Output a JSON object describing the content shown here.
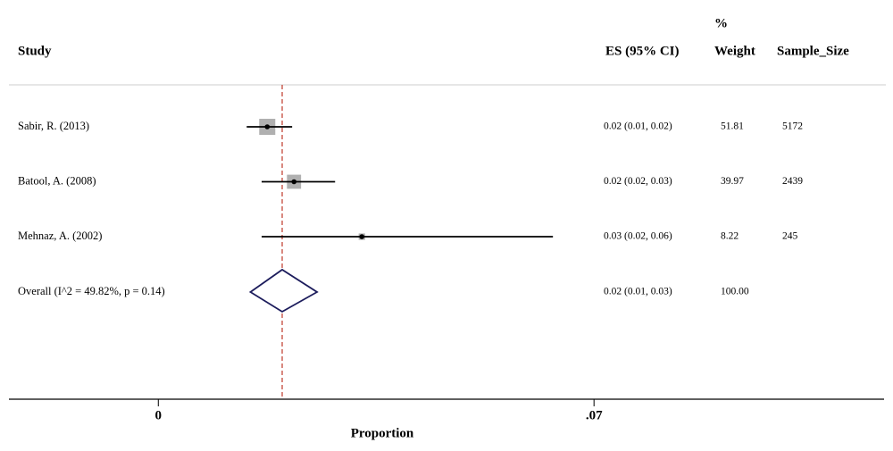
{
  "chart_data": {
    "type": "forest",
    "columns": {
      "study": "Study",
      "es": "ES (95% CI)",
      "weight_top": "%",
      "weight": "Weight",
      "sample": "Sample_Size"
    },
    "studies": [
      {
        "label": "Sabir, R. (2013)",
        "estimate": 0.0175,
        "lower": 0.0142,
        "upper": 0.0215,
        "es_label": "0.02 (0.01, 0.02)",
        "weight": 51.81,
        "sample_size": 5172
      },
      {
        "label": "Batool, A. (2008)",
        "estimate": 0.0218,
        "lower": 0.0166,
        "upper": 0.0284,
        "es_label": "0.02 (0.02, 0.03)",
        "weight": 39.97,
        "sample_size": 2439
      },
      {
        "label": "Mehnaz, A. (2002)",
        "estimate": 0.0327,
        "lower": 0.0166,
        "upper": 0.0634,
        "es_label": "0.03 (0.02, 0.06)",
        "weight": 8.22,
        "sample_size": 245
      }
    ],
    "overall": {
      "label": "Overall (I^2 = 49.82%, p = 0.14)",
      "estimate": 0.0199,
      "lower": 0.0148,
      "upper": 0.0255,
      "es_label": "0.02 (0.01, 0.03)",
      "weight": {
        "value": 100,
        "label": "100.00"
      }
    },
    "xlabel": "Proportion",
    "xlim": [
      -0.024,
      0.1166
    ],
    "xticks": [
      0,
      {
        "value": 0.07,
        "label": ".07"
      }
    ],
    "box_color": "#b0b0b0",
    "ci_color": "#000000",
    "diamond_color": "#1c1c5c",
    "ref_line_color": "#c0392b"
  }
}
